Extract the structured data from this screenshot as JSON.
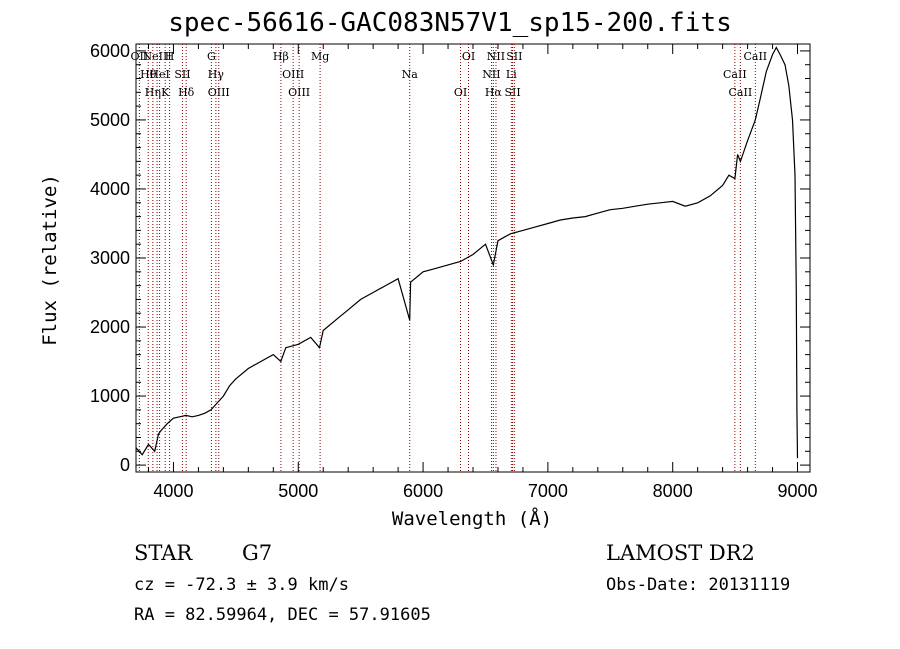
{
  "title": "spec-56616-GAC083N57V1_sp15-200.fits",
  "info": {
    "class": "STAR",
    "subclass": "G7",
    "survey": "LAMOST DR2",
    "cz": "cz = -72.3 ± 3.9 km/s",
    "obs_date": "Obs-Date: 20131119",
    "radec": "RA =  82.59964, DEC =  57.91605"
  },
  "colors": {
    "line": "#000000",
    "marker": "#8b0000",
    "background": "#ffffff"
  },
  "chart_data": {
    "type": "line",
    "title": "spec-56616-GAC083N57V1_sp15-200.fits",
    "xlabel": "Wavelength (Å)",
    "ylabel": "Flux (relative)",
    "xlim": [
      3700,
      9100
    ],
    "ylim": [
      -100,
      6100
    ],
    "xticks": [
      4000,
      5000,
      6000,
      7000,
      8000,
      9000
    ],
    "yticks": [
      0,
      1000,
      2000,
      3000,
      4000,
      5000,
      6000
    ],
    "grid": false,
    "series": [
      {
        "x": [
          3700,
          3750,
          3800,
          3850,
          3880,
          3900,
          3950,
          4000,
          4050,
          4100,
          4150,
          4200,
          4250,
          4300,
          4350,
          4400,
          4450,
          4500,
          4600,
          4700,
          4800,
          4860,
          4900,
          5000,
          5100,
          5170,
          5200,
          5300,
          5400,
          5500,
          5600,
          5700,
          5800,
          5893,
          5900,
          6000,
          6100,
          6200,
          6300,
          6400,
          6500,
          6563,
          6600,
          6700,
          6800,
          6900,
          7000,
          7100,
          7200,
          7300,
          7400,
          7500,
          7600,
          7700,
          7800,
          7900,
          8000,
          8100,
          8200,
          8300,
          8400,
          8450,
          8498,
          8520,
          8542,
          8600,
          8662,
          8700,
          8750,
          8800,
          8830,
          8860,
          8900,
          8930,
          8960,
          8980,
          8990,
          8995,
          9000
        ],
        "y": [
          250,
          150,
          300,
          200,
          450,
          500,
          600,
          680,
          700,
          720,
          700,
          720,
          750,
          800,
          900,
          1000,
          1150,
          1250,
          1400,
          1500,
          1600,
          1500,
          1700,
          1750,
          1850,
          1700,
          1950,
          2100,
          2250,
          2400,
          2500,
          2600,
          2700,
          2100,
          2650,
          2800,
          2850,
          2900,
          2950,
          3050,
          3200,
          2900,
          3250,
          3350,
          3400,
          3450,
          3500,
          3550,
          3580,
          3600,
          3650,
          3700,
          3720,
          3750,
          3780,
          3800,
          3820,
          3750,
          3800,
          3900,
          4050,
          4200,
          4150,
          4500,
          4400,
          4700,
          5000,
          5300,
          5700,
          5950,
          6050,
          5950,
          5800,
          5500,
          5000,
          4200,
          2500,
          800,
          100
        ]
      }
    ],
    "lines": [
      {
        "w": 3727,
        "label": "OII"
      },
      {
        "w": 3798,
        "label": "Hθ"
      },
      {
        "w": 3835,
        "label": "Hη"
      },
      {
        "w": 3869,
        "label": "NeIII"
      },
      {
        "w": 3889,
        "label": "HeI"
      },
      {
        "w": 3934,
        "label": "K"
      },
      {
        "w": 3969,
        "label": "H"
      },
      {
        "w": 4072,
        "label": "SII"
      },
      {
        "w": 4102,
        "label": "Hδ"
      },
      {
        "w": 4304,
        "label": "G"
      },
      {
        "w": 4340,
        "label": "Hγ"
      },
      {
        "w": 4363,
        "label": "OIII"
      },
      {
        "w": 4861,
        "label": "Hβ"
      },
      {
        "w": 4959,
        "label": "OIII"
      },
      {
        "w": 5007,
        "label": "OIII"
      },
      {
        "w": 5175,
        "label": "Mg"
      },
      {
        "w": 5893,
        "label": "Na"
      },
      {
        "w": 6300,
        "label": "OI"
      },
      {
        "w": 6364,
        "label": "OI"
      },
      {
        "w": 6548,
        "label": "NII"
      },
      {
        "w": 6563,
        "label": "Hα"
      },
      {
        "w": 6584,
        "label": "NII"
      },
      {
        "w": 6707,
        "label": "Li"
      },
      {
        "w": 6717,
        "label": "SII"
      },
      {
        "w": 6731,
        "label": "SII"
      },
      {
        "w": 8498,
        "label": "CaII"
      },
      {
        "w": 8542,
        "label": "CaII"
      },
      {
        "w": 8662,
        "label": "CaII"
      }
    ]
  }
}
